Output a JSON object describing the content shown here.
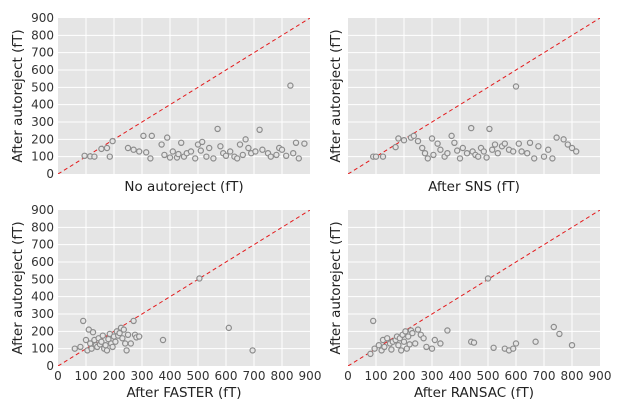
{
  "chart_data": [
    {
      "type": "scatter",
      "xlabel": "No autoreject (fT)",
      "ylabel": "After autoreject (fT)",
      "xlim": [
        0,
        900
      ],
      "ylim": [
        0,
        900
      ],
      "xticks": [],
      "yticks": [
        0,
        100,
        200,
        300,
        400,
        500,
        600,
        700,
        800,
        900
      ],
      "diagonal": true,
      "points": [
        [
          95,
          105
        ],
        [
          115,
          102
        ],
        [
          130,
          100
        ],
        [
          155,
          145
        ],
        [
          175,
          150
        ],
        [
          185,
          100
        ],
        [
          195,
          190
        ],
        [
          250,
          150
        ],
        [
          270,
          140
        ],
        [
          290,
          130
        ],
        [
          305,
          220
        ],
        [
          315,
          125
        ],
        [
          330,
          90
        ],
        [
          335,
          220
        ],
        [
          370,
          170
        ],
        [
          380,
          110
        ],
        [
          390,
          210
        ],
        [
          400,
          95
        ],
        [
          410,
          130
        ],
        [
          425,
          95
        ],
        [
          430,
          115
        ],
        [
          440,
          180
        ],
        [
          450,
          100
        ],
        [
          460,
          120
        ],
        [
          475,
          130
        ],
        [
          490,
          90
        ],
        [
          500,
          170
        ],
        [
          510,
          135
        ],
        [
          515,
          185
        ],
        [
          530,
          100
        ],
        [
          540,
          150
        ],
        [
          555,
          90
        ],
        [
          570,
          260
        ],
        [
          580,
          160
        ],
        [
          590,
          120
        ],
        [
          600,
          105
        ],
        [
          615,
          130
        ],
        [
          630,
          100
        ],
        [
          640,
          90
        ],
        [
          650,
          170
        ],
        [
          660,
          110
        ],
        [
          670,
          200
        ],
        [
          680,
          150
        ],
        [
          690,
          120
        ],
        [
          705,
          130
        ],
        [
          720,
          255
        ],
        [
          730,
          140
        ],
        [
          750,
          120
        ],
        [
          760,
          100
        ],
        [
          780,
          110
        ],
        [
          790,
          150
        ],
        [
          800,
          140
        ],
        [
          815,
          105
        ],
        [
          830,
          510
        ],
        [
          840,
          120
        ],
        [
          850,
          180
        ],
        [
          860,
          90
        ],
        [
          880,
          175
        ]
      ]
    },
    {
      "type": "scatter",
      "xlabel": "After SNS (fT)",
      "ylabel": "After autoreject (fT)",
      "xlim": [
        0,
        900
      ],
      "ylim": [
        0,
        900
      ],
      "xticks": [],
      "yticks": [],
      "diagonal": true,
      "points": [
        [
          90,
          100
        ],
        [
          100,
          100
        ],
        [
          125,
          100
        ],
        [
          170,
          155
        ],
        [
          180,
          205
        ],
        [
          200,
          195
        ],
        [
          225,
          210
        ],
        [
          235,
          220
        ],
        [
          250,
          190
        ],
        [
          265,
          150
        ],
        [
          275,
          120
        ],
        [
          285,
          90
        ],
        [
          300,
          205
        ],
        [
          305,
          110
        ],
        [
          320,
          175
        ],
        [
          330,
          140
        ],
        [
          345,
          100
        ],
        [
          355,
          120
        ],
        [
          370,
          220
        ],
        [
          380,
          180
        ],
        [
          390,
          135
        ],
        [
          400,
          90
        ],
        [
          410,
          150
        ],
        [
          425,
          120
        ],
        [
          440,
          265
        ],
        [
          445,
          130
        ],
        [
          455,
          110
        ],
        [
          465,
          100
        ],
        [
          475,
          150
        ],
        [
          485,
          130
        ],
        [
          495,
          95
        ],
        [
          505,
          260
        ],
        [
          515,
          140
        ],
        [
          525,
          170
        ],
        [
          535,
          120
        ],
        [
          550,
          160
        ],
        [
          560,
          175
        ],
        [
          575,
          140
        ],
        [
          590,
          130
        ],
        [
          600,
          505
        ],
        [
          610,
          175
        ],
        [
          620,
          130
        ],
        [
          640,
          120
        ],
        [
          650,
          180
        ],
        [
          665,
          90
        ],
        [
          680,
          160
        ],
        [
          700,
          100
        ],
        [
          715,
          140
        ],
        [
          730,
          90
        ],
        [
          745,
          210
        ],
        [
          770,
          200
        ],
        [
          785,
          170
        ],
        [
          800,
          150
        ],
        [
          815,
          130
        ]
      ]
    },
    {
      "type": "scatter",
      "xlabel": "After FASTER (fT)",
      "ylabel": "After autoreject (fT)",
      "xlim": [
        0,
        900
      ],
      "ylim": [
        0,
        900
      ],
      "xticks": [
        0,
        100,
        200,
        300,
        400,
        500,
        600,
        700,
        800,
        900
      ],
      "yticks": [
        0,
        100,
        200,
        300,
        400,
        500,
        600,
        700,
        800,
        900
      ],
      "diagonal": true,
      "points": [
        [
          60,
          100
        ],
        [
          80,
          110
        ],
        [
          90,
          260
        ],
        [
          100,
          150
        ],
        [
          105,
          90
        ],
        [
          110,
          210
        ],
        [
          115,
          130
        ],
        [
          120,
          100
        ],
        [
          125,
          195
        ],
        [
          130,
          150
        ],
        [
          135,
          120
        ],
        [
          140,
          110
        ],
        [
          145,
          160
        ],
        [
          150,
          125
        ],
        [
          155,
          140
        ],
        [
          160,
          175
        ],
        [
          165,
          100
        ],
        [
          170,
          120
        ],
        [
          175,
          90
        ],
        [
          180,
          155
        ],
        [
          185,
          185
        ],
        [
          190,
          130
        ],
        [
          195,
          110
        ],
        [
          200,
          170
        ],
        [
          205,
          140
        ],
        [
          210,
          200
        ],
        [
          215,
          175
        ],
        [
          220,
          190
        ],
        [
          225,
          220
        ],
        [
          230,
          160
        ],
        [
          235,
          210
        ],
        [
          240,
          130
        ],
        [
          245,
          90
        ],
        [
          250,
          180
        ],
        [
          260,
          130
        ],
        [
          270,
          260
        ],
        [
          275,
          180
        ],
        [
          280,
          165
        ],
        [
          290,
          170
        ],
        [
          375,
          150
        ],
        [
          505,
          505
        ],
        [
          610,
          220
        ],
        [
          695,
          90
        ]
      ]
    },
    {
      "type": "scatter",
      "xlabel": "After RANSAC (fT)",
      "ylabel": "After autoreject (fT)",
      "xlim": [
        0,
        900
      ],
      "ylim": [
        0,
        900
      ],
      "xticks": [
        0,
        100,
        200,
        300,
        400,
        500,
        600,
        700,
        800,
        900
      ],
      "yticks": [],
      "diagonal": true,
      "points": [
        [
          80,
          70
        ],
        [
          90,
          260
        ],
        [
          95,
          100
        ],
        [
          110,
          120
        ],
        [
          120,
          90
        ],
        [
          125,
          150
        ],
        [
          130,
          110
        ],
        [
          140,
          160
        ],
        [
          150,
          130
        ],
        [
          155,
          95
        ],
        [
          160,
          140
        ],
        [
          170,
          150
        ],
        [
          175,
          170
        ],
        [
          180,
          120
        ],
        [
          185,
          160
        ],
        [
          190,
          90
        ],
        [
          195,
          180
        ],
        [
          200,
          140
        ],
        [
          205,
          200
        ],
        [
          210,
          100
        ],
        [
          215,
          170
        ],
        [
          220,
          125
        ],
        [
          225,
          205
        ],
        [
          230,
          190
        ],
        [
          240,
          130
        ],
        [
          250,
          210
        ],
        [
          260,
          180
        ],
        [
          270,
          160
        ],
        [
          280,
          110
        ],
        [
          300,
          100
        ],
        [
          310,
          150
        ],
        [
          330,
          130
        ],
        [
          355,
          205
        ],
        [
          440,
          140
        ],
        [
          450,
          135
        ],
        [
          500,
          505
        ],
        [
          520,
          105
        ],
        [
          560,
          100
        ],
        [
          575,
          90
        ],
        [
          590,
          100
        ],
        [
          600,
          130
        ],
        [
          670,
          140
        ],
        [
          735,
          225
        ],
        [
          755,
          185
        ],
        [
          800,
          120
        ]
      ]
    }
  ]
}
